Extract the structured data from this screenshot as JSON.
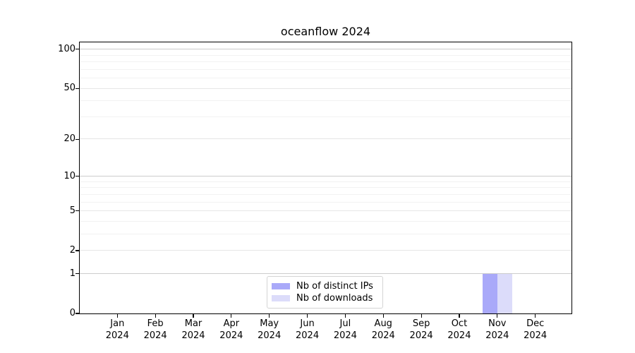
{
  "figure": {
    "background": "#ffffff"
  },
  "chart_data": {
    "type": "bar",
    "title": "oceanflow 2024",
    "categories": [
      "Jan 2024",
      "Feb 2024",
      "Mar 2024",
      "Apr 2024",
      "May 2024",
      "Jun 2024",
      "Jul 2024",
      "Aug 2024",
      "Sep 2024",
      "Oct 2024",
      "Nov 2024",
      "Dec 2024"
    ],
    "series": [
      {
        "name": "Nb of distinct IPs",
        "color": "#a9a9f9",
        "values": [
          0,
          0,
          0,
          0,
          0,
          0,
          0,
          0,
          0,
          0,
          1,
          0
        ]
      },
      {
        "name": "Nb of downloads",
        "color": "#dcdcfa",
        "values": [
          0,
          0,
          0,
          0,
          0,
          0,
          0,
          0,
          0,
          0,
          1,
          0
        ]
      }
    ],
    "xlabel": "",
    "ylabel": "",
    "y_axis": {
      "scale": "log1p",
      "ticks": [
        0,
        1,
        2,
        5,
        10,
        20,
        50,
        100
      ],
      "emphasized_ticks": [
        1,
        10,
        100
      ],
      "minor_gridline_values": [
        3,
        4,
        6,
        7,
        8,
        9,
        30,
        40,
        60,
        70,
        80,
        90
      ],
      "ylim": [
        0,
        113
      ]
    },
    "grid": true,
    "legend": {
      "position": "lower center",
      "entries": [
        "Nb of distinct IPs",
        "Nb of downloads"
      ]
    }
  },
  "colors": {
    "spine": "#000000",
    "grid_emphasized": "#cccccc",
    "grid_major": "#e6e6e6",
    "grid_minor": "#f2f2f2",
    "legend_border": "#d4d4d4",
    "text": "#000000"
  }
}
